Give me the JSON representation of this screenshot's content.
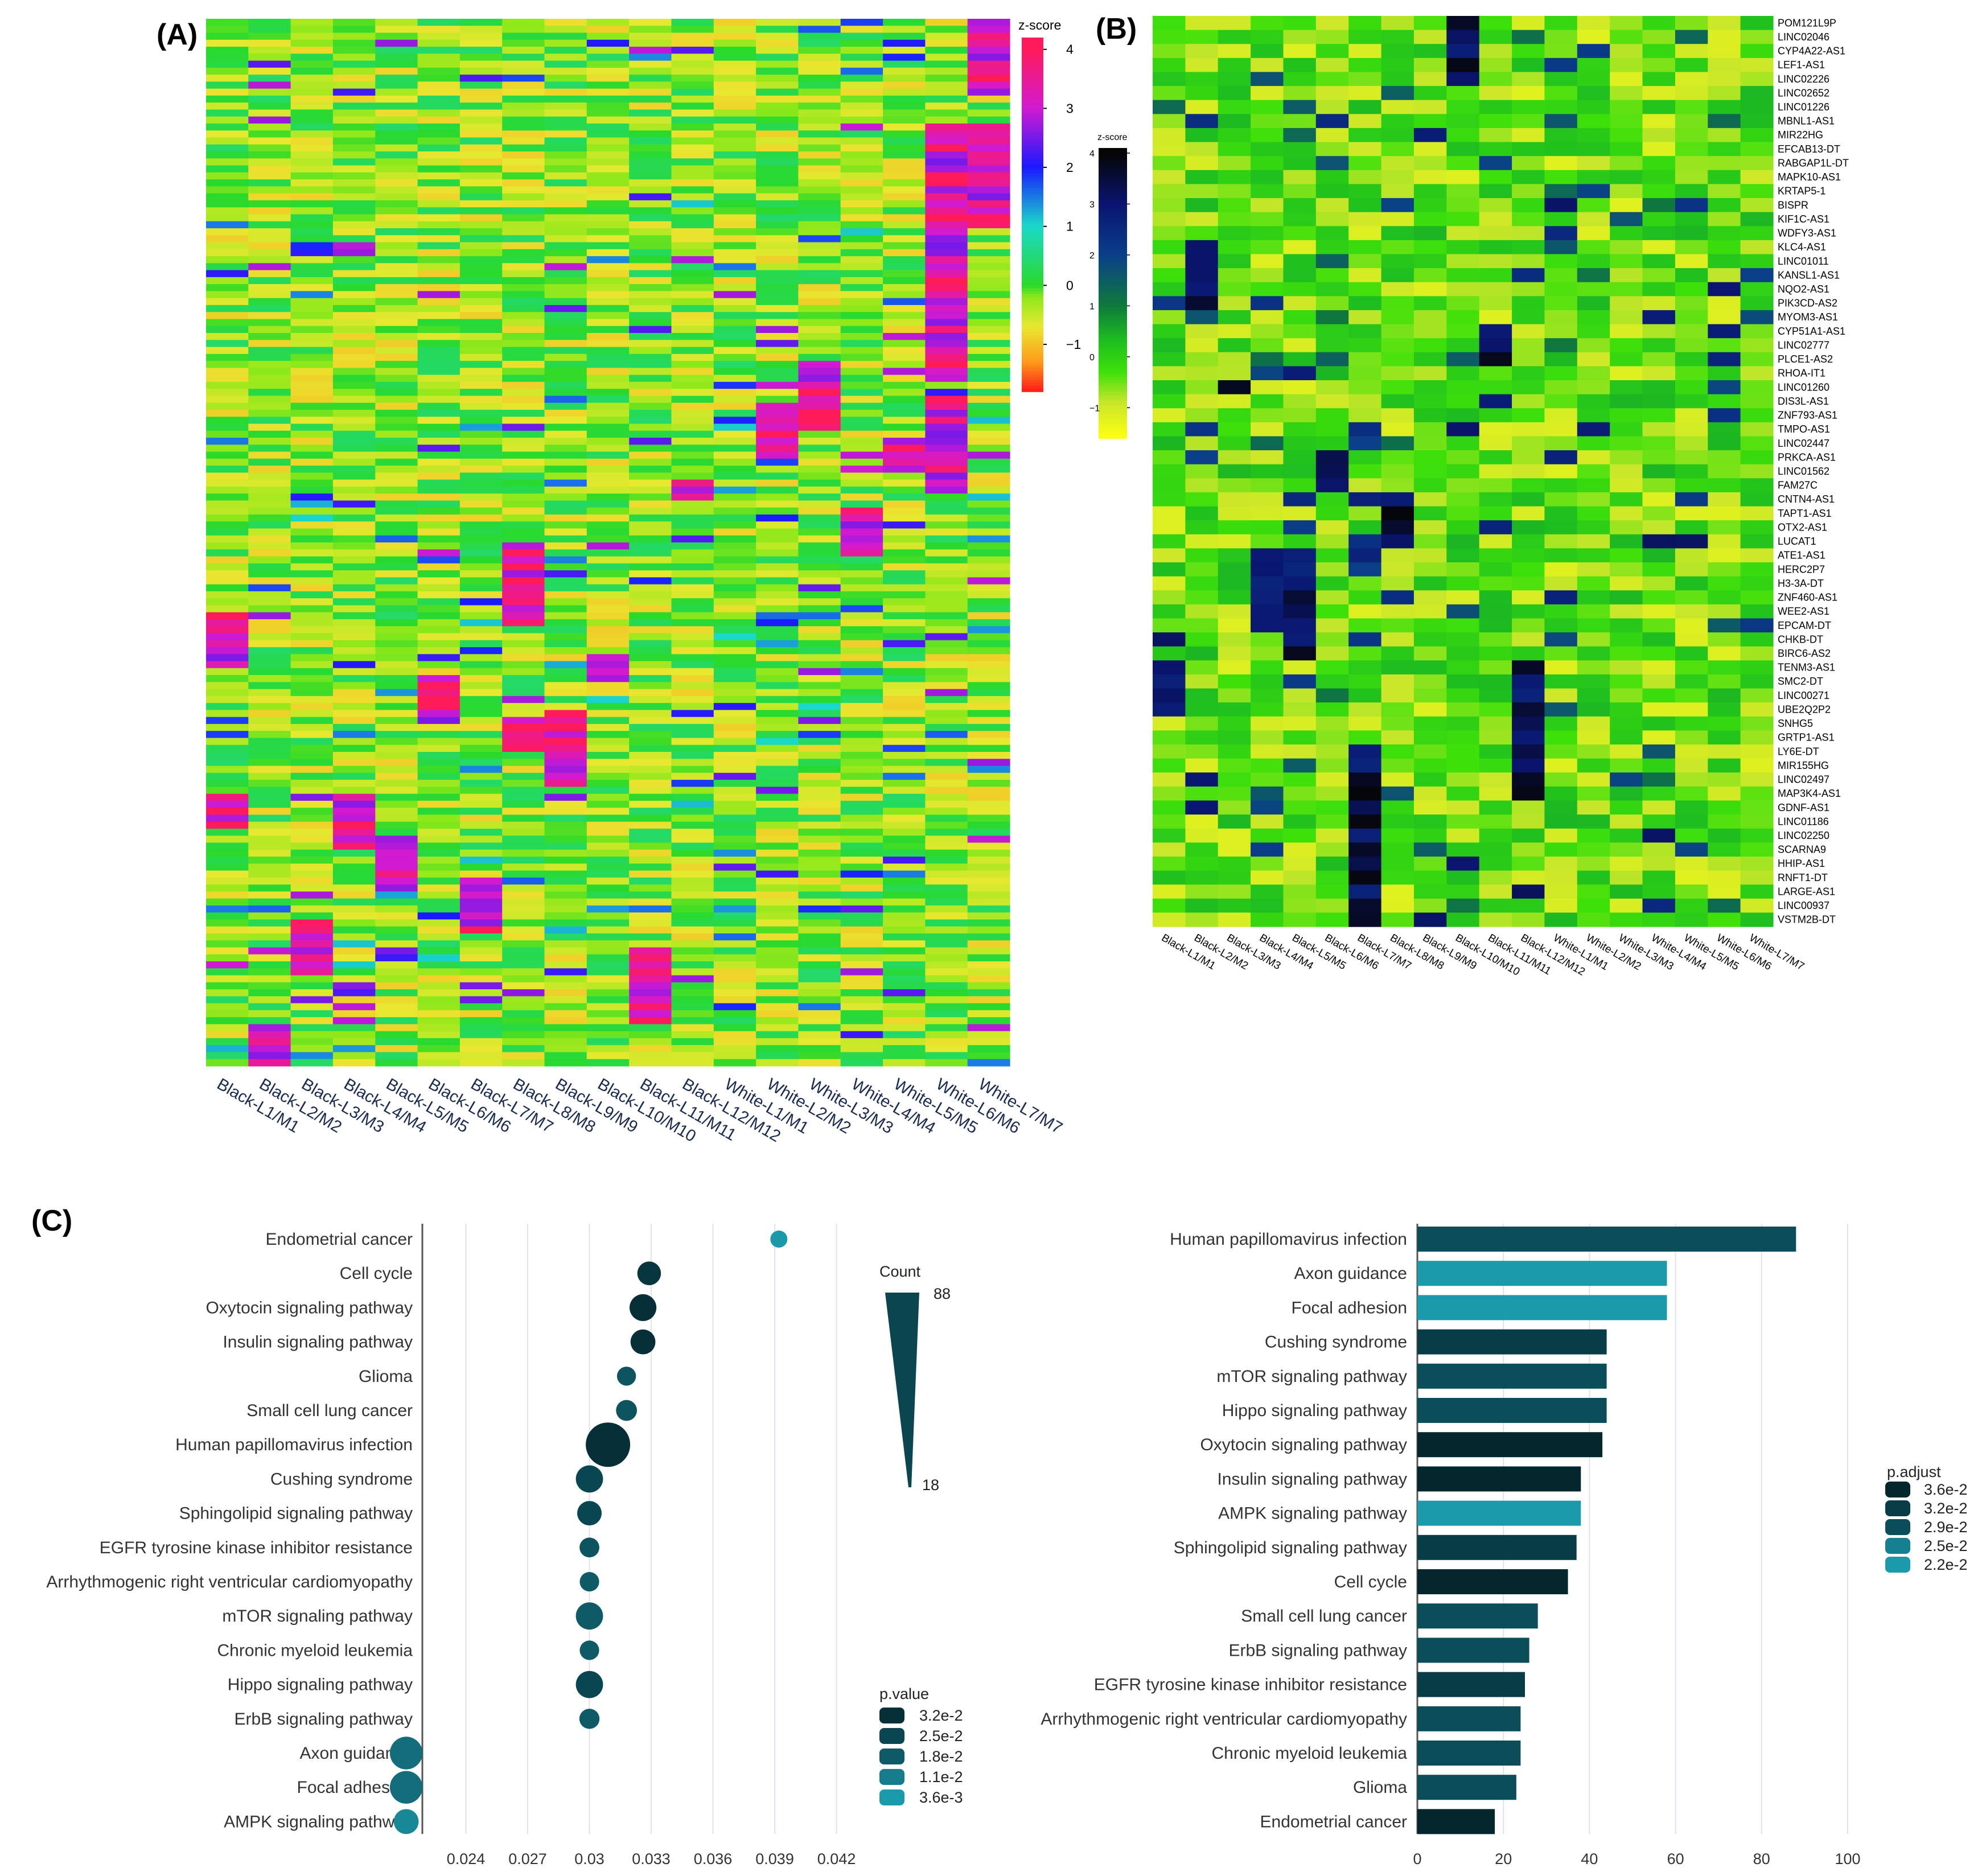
{
  "panel_labels": {
    "a": "(A)",
    "b": "(B)",
    "c": "(C)"
  },
  "colors": {
    "teal_dark": "#063a45",
    "teal_mid": "#0b6b78",
    "teal_light": "#1b9aab",
    "grid": "#dde3ea"
  },
  "chart_data": [
    {
      "type": "heatmap",
      "id": "A",
      "title": "",
      "samples": [
        "Black-L1/M1",
        "Black-L2/M2",
        "Black-L3/M3",
        "Black-L4/M4",
        "Black-L5/M5",
        "Black-L6/M6",
        "Black-L7/M7",
        "Black-L8/M8",
        "Black-L9/M9",
        "Black-L10/M10",
        "Black-L11/M11",
        "Black-L12/M12",
        "White-L1/M1",
        "White-L2/M2",
        "White-L3/M3",
        "White-L4/M4",
        "White-L5/M5",
        "White-L6/M6",
        "White-L7/M7"
      ],
      "colorbar": {
        "label": "z-score",
        "ticks": [
          "4",
          "3",
          "2",
          "1",
          "0",
          "−1"
        ],
        "range": [
          -1.8,
          4.2
        ]
      }
    },
    {
      "type": "heatmap",
      "id": "B",
      "title": "",
      "samples": [
        "Black-L1/M1",
        "Black-L2/M2",
        "Black-L3/M3",
        "Black-L4/M4",
        "Black-L5/M5",
        "Black-L6/M6",
        "Black-L7/M7",
        "Black-L8/M8",
        "Black-L9/M9",
        "Black-L10/M10",
        "Black-L11/M11",
        "Black-L12/M12",
        "White-L1/M1",
        "White-L2/M2",
        "White-L3/M3",
        "White-L4/M4",
        "White-L5/M5",
        "White-L6/M6",
        "White-L7/M7"
      ],
      "genes": [
        "POM121L9P",
        "LINC02046",
        "CYP4A22-AS1",
        "LEF1-AS1",
        "LINC02226",
        "LINC02652",
        "LINC01226",
        "MBNL1-AS1",
        "MIR22HG",
        "EFCAB13-DT",
        "RABGAP1L-DT",
        "MAPK10-AS1",
        "KRTAP5-1",
        "BISPR",
        "KIF1C-AS1",
        "WDFY3-AS1",
        "KLC4-AS1",
        "LINC01011",
        "KANSL1-AS1",
        "NQO2-AS1",
        "PIK3CD-AS2",
        "MYOM3-AS1",
        "CYP51A1-AS1",
        "LINC02777",
        "PLCE1-AS2",
        "RHOA-IT1",
        "LINC01260",
        "DIS3L-AS1",
        "ZNF793-AS1",
        "TMPO-AS1",
        "LINC02447",
        "PRKCA-AS1",
        "LINC01562",
        "FAM27C",
        "CNTN4-AS1",
        "TAPT1-AS1",
        "OTX2-AS1",
        "LUCAT1",
        "ATE1-AS1",
        "HERC2P7",
        "H3-3A-DT",
        "ZNF460-AS1",
        "WEE2-AS1",
        "EPCAM-DT",
        "CHKB-DT",
        "BIRC6-AS2",
        "TENM3-AS1",
        "SMC2-DT",
        "LINC00271",
        "UBE2Q2P2",
        "SNHG5",
        "GRTP1-AS1",
        "LY6E-DT",
        "MIR155HG",
        "LINC02497",
        "MAP3K4-AS1",
        "GDNF-AS1",
        "LINC01186",
        "LINC02250",
        "SCARNA9",
        "HHIP-AS1",
        "RNFT1-DT",
        "LARGE-AS1",
        "LINC00937",
        "VSTM2B-DT"
      ],
      "colorbar": {
        "label": "z-score",
        "ticks": [
          "4",
          "3",
          "2",
          "1",
          "0",
          "−1"
        ],
        "range": [
          -1.6,
          4.1
        ]
      }
    },
    {
      "type": "scatter",
      "id": "C-dot",
      "title": "",
      "categories": [
        "Endometrial cancer",
        "Cell cycle",
        "Oxytocin signaling pathway",
        "Insulin signaling pathway",
        "Glioma",
        "Small cell lung cancer",
        "Human papillomavirus infection",
        "Cushing syndrome",
        "Sphingolipid signaling pathway",
        "EGFR tyrosine kinase inhibitor resistance",
        "Arrhythmogenic right ventricular cardiomyopathy",
        "mTOR signaling pathway",
        "Chronic myeloid leukemia",
        "Hippo signaling pathway",
        "ErbB signaling pathway",
        "Axon guidance",
        "Focal adhesion",
        "AMPK signaling pathway"
      ],
      "x": [
        0.0392,
        0.0329,
        0.0326,
        0.0326,
        0.0318,
        0.0318,
        0.0309,
        0.03,
        0.03,
        0.03,
        0.03,
        0.03,
        0.03,
        0.03,
        0.03,
        0.0211,
        0.0211,
        0.0211
      ],
      "count": [
        18,
        35,
        43,
        38,
        23,
        28,
        88,
        44,
        37,
        25,
        24,
        44,
        24,
        44,
        26,
        58,
        58,
        38
      ],
      "pvalue": [
        0.004,
        0.03,
        0.032,
        0.032,
        0.02,
        0.02,
        0.032,
        0.025,
        0.025,
        0.02,
        0.018,
        0.018,
        0.018,
        0.025,
        0.018,
        0.014,
        0.014,
        0.008
      ],
      "xlim": [
        0.021,
        0.0445
      ],
      "xticks": [
        "0.024",
        "0.027",
        "0.03",
        "0.033",
        "0.036",
        "0.039",
        "0.042"
      ],
      "legend_count": {
        "title": "Count",
        "max": "88",
        "min": "18"
      },
      "legend_p": {
        "title": "p.value",
        "labels": [
          "3.2e-2",
          "2.5e-2",
          "1.8e-2",
          "1.1e-2",
          "3.6e-3"
        ]
      }
    },
    {
      "type": "bar",
      "id": "C-bar",
      "title": "",
      "categories": [
        "Human papillomavirus infection",
        "Axon guidance",
        "Focal adhesion",
        "Cushing syndrome",
        "mTOR signaling pathway",
        "Hippo signaling pathway",
        "Oxytocin signaling pathway",
        "Insulin signaling pathway",
        "AMPK signaling pathway",
        "Sphingolipid signaling pathway",
        "Cell cycle",
        "Small cell lung cancer",
        "ErbB signaling pathway",
        "EGFR tyrosine kinase inhibitor resistance",
        "Arrhythmogenic right ventricular cardiomyopathy",
        "Chronic myeloid leukemia",
        "Glioma",
        "Endometrial cancer"
      ],
      "values": [
        88,
        58,
        58,
        44,
        44,
        44,
        43,
        38,
        38,
        37,
        35,
        28,
        26,
        25,
        24,
        24,
        23,
        18
      ],
      "padjust": [
        0.029,
        0.022,
        0.022,
        0.032,
        0.029,
        0.029,
        0.036,
        0.036,
        0.022,
        0.032,
        0.036,
        0.029,
        0.029,
        0.032,
        0.029,
        0.029,
        0.029,
        0.036
      ],
      "xlim": [
        0,
        100
      ],
      "xticks": [
        "0",
        "20",
        "40",
        "60",
        "80",
        "100"
      ],
      "legend": {
        "title": "p.adjust",
        "labels": [
          "3.6e-2",
          "3.2e-2",
          "2.9e-2",
          "2.5e-2",
          "2.2e-2"
        ]
      }
    }
  ]
}
